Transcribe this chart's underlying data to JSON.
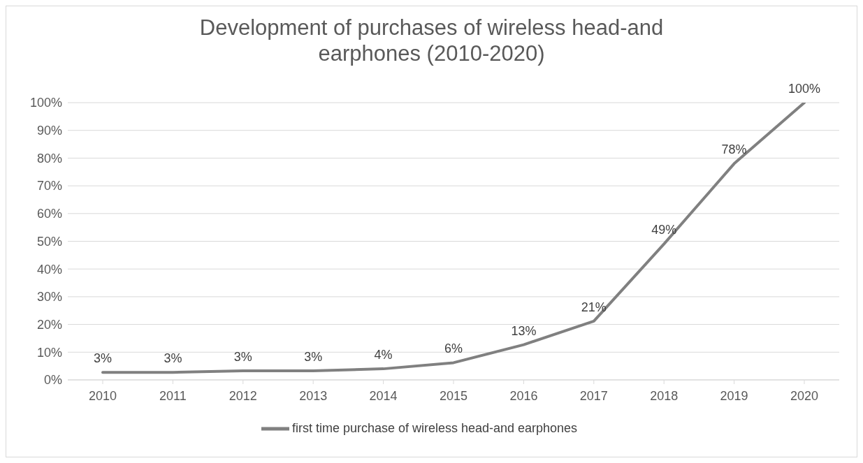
{
  "chart_data": {
    "type": "line",
    "title": "Development of purchases of wireless head-and earphones (2010-2020)",
    "categories": [
      "2010",
      "2011",
      "2012",
      "2013",
      "2014",
      "2015",
      "2016",
      "2017",
      "2018",
      "2019",
      "2020"
    ],
    "series": [
      {
        "name": "first time purchase of wireless head-and earphones",
        "color": "#808080",
        "values": [
          2.7,
          2.7,
          3.3,
          3.3,
          4,
          6.2,
          12.7,
          21.2,
          49,
          78,
          100
        ],
        "value_labels": [
          "3%",
          "3%",
          "3%",
          "3%",
          "4%",
          "6%",
          "13%",
          "21%",
          "49%",
          "78%",
          "100%"
        ]
      }
    ],
    "ylim": [
      0,
      100
    ],
    "yticks": [
      {
        "value": 0,
        "label": "0%"
      },
      {
        "value": 10,
        "label": "10%"
      },
      {
        "value": 20,
        "label": "20%"
      },
      {
        "value": 30,
        "label": "30%"
      },
      {
        "value": 40,
        "label": "40%"
      },
      {
        "value": 50,
        "label": "50%"
      },
      {
        "value": 60,
        "label": "60%"
      },
      {
        "value": 70,
        "label": "70%"
      },
      {
        "value": 80,
        "label": "80%"
      },
      {
        "value": 90,
        "label": "90%"
      },
      {
        "value": 100,
        "label": "100%"
      }
    ],
    "grid": "y",
    "legend": "bottom",
    "marker": "none",
    "line_style": "solid"
  }
}
